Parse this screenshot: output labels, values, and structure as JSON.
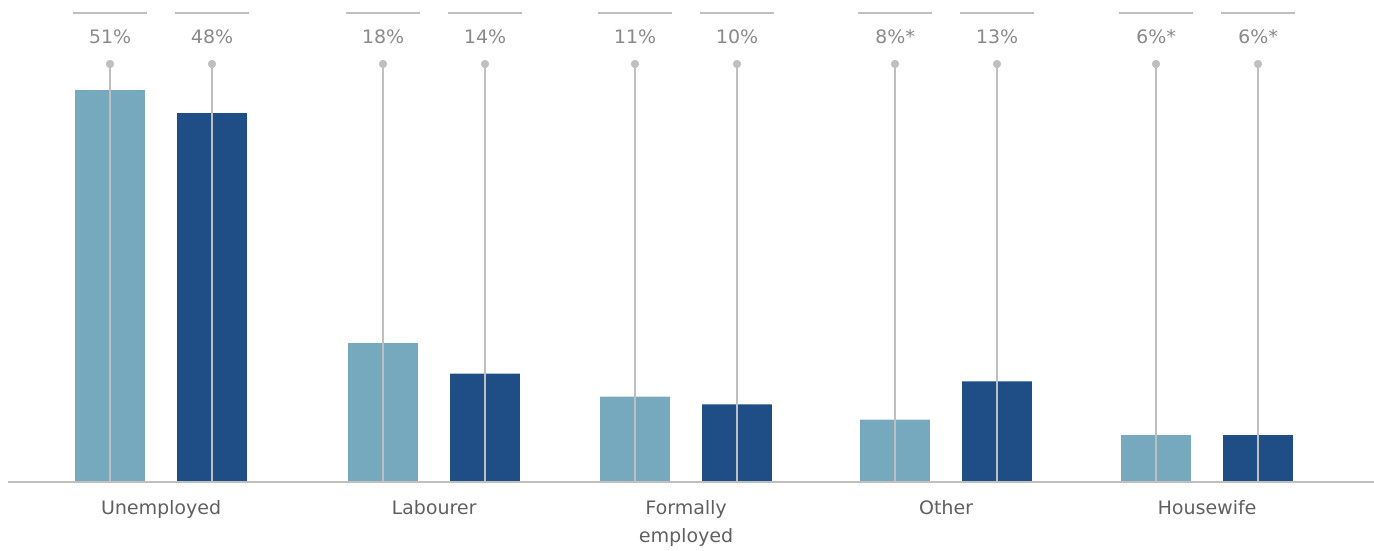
{
  "chart_data": {
    "type": "bar",
    "categories": [
      "Unemployed",
      "Labourer",
      "Formally employed",
      "Other",
      "Housewife"
    ],
    "category_lines": [
      [
        "Unemployed"
      ],
      [
        "Labourer"
      ],
      [
        "Formally",
        "employed"
      ],
      [
        "Other"
      ],
      [
        "Housewife"
      ]
    ],
    "series": [
      {
        "color": "#77a9be",
        "values": [
          51,
          18,
          11,
          8,
          6
        ],
        "labels": [
          "51%",
          "18%",
          "11%",
          "8%*",
          "6%*"
        ]
      },
      {
        "color": "#1f4e87",
        "values": [
          48,
          14,
          10,
          13,
          6
        ],
        "labels": [
          "48%",
          "14%",
          "10%",
          "13%",
          "6%*"
        ]
      }
    ],
    "ylim": [
      0,
      51
    ],
    "grid": false,
    "legend": "none",
    "colors": {
      "axis": "#bfbfbf",
      "leader_line": "#bfbfbf",
      "label_text": "#8a8a8a",
      "category_text": "#606060"
    }
  }
}
